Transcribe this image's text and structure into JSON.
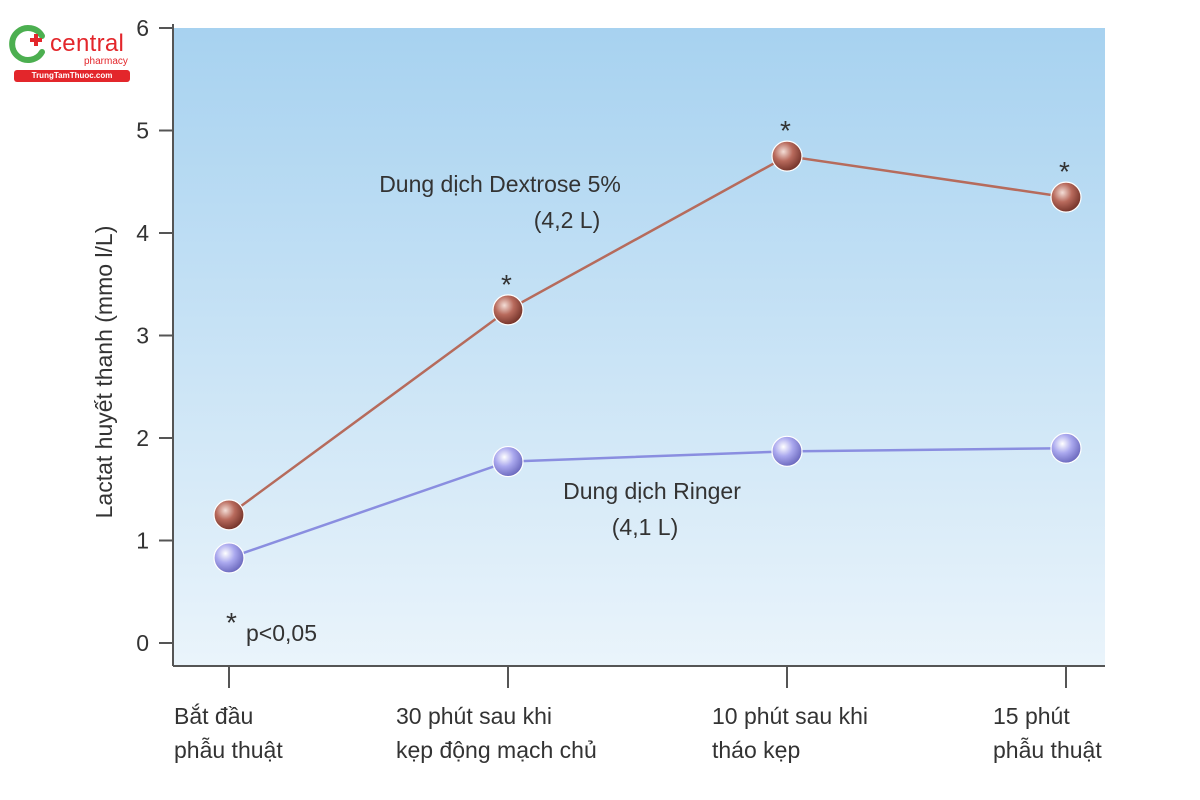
{
  "logo": {
    "name": "central",
    "sub": "pharmacy",
    "url": "TrungTamThuoc.com"
  },
  "chart_data": {
    "type": "line",
    "title": "",
    "ylabel": "Lactat huyết thanh (mmo  l/L)",
    "xlabel": "",
    "ylim": [
      0,
      6
    ],
    "yticks": [
      0,
      1,
      2,
      3,
      4,
      5,
      6
    ],
    "grid": false,
    "categories": [
      [
        "Bắt đầu",
        "phẫu thuật"
      ],
      [
        "30 phút sau khi",
        "kẹp động mạch chủ"
      ],
      [
        "10 phút sau khi",
        "tháo kẹp"
      ],
      [
        "15 phút",
        "phẫu thuật"
      ]
    ],
    "series": [
      {
        "name": "Dung dịch Dextrose 5%",
        "volume": "(4,2 L)",
        "values": [
          1.25,
          3.25,
          4.75,
          4.35
        ],
        "significant": [
          false,
          true,
          true,
          true
        ],
        "line_color": "#b66b5c",
        "marker_color": "#9b4a3e"
      },
      {
        "name": "Dung dịch Ringer",
        "volume": "(4,1 L)",
        "values": [
          0.83,
          1.77,
          1.87,
          1.9
        ],
        "significant": [
          false,
          false,
          false,
          false
        ],
        "line_color": "#8a8ee0",
        "marker_color": "#8e8be0"
      }
    ],
    "significance_marker": "*",
    "note": "p<0,05",
    "colors": {
      "plot_bg_top": "#a7d2f0",
      "plot_bg_bottom": "#e6f2fa",
      "axis": "#555555"
    }
  }
}
